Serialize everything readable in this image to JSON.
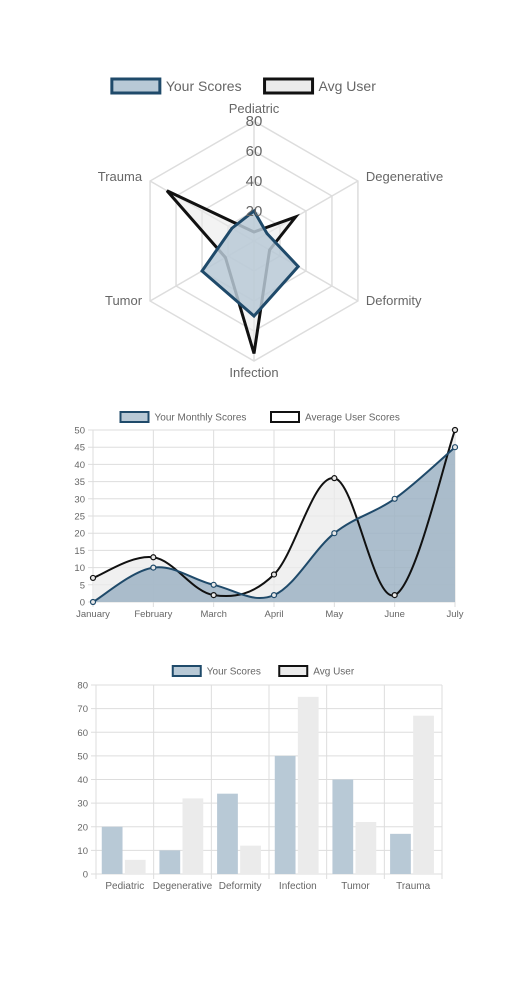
{
  "colors": {
    "you_fill": "#b8c9d6",
    "you_stroke": "#1f4a6a",
    "avg_fill": "#ebebeb",
    "avg_stroke": "#111111",
    "area_fill": "#9eb3c4",
    "grid": "#dddddd",
    "label": "#666666"
  },
  "chart_data": [
    {
      "type": "radar",
      "legend": [
        "Your Scores",
        "Avg User"
      ],
      "legend_position": "top",
      "categories": [
        "Pediatric",
        "Degenerative",
        "Deformity",
        "Infection",
        "Tumor",
        "Trauma"
      ],
      "ticks": [
        "20",
        "40",
        "60",
        "80"
      ],
      "range": [
        0,
        80
      ],
      "series": [
        {
          "name": "Your Scores",
          "values": [
            20,
            10,
            34,
            50,
            40,
            17
          ]
        },
        {
          "name": "Avg User",
          "values": [
            6,
            32,
            12,
            75,
            22,
            67
          ]
        }
      ]
    },
    {
      "type": "area",
      "legend": [
        "Your Monthly Scores",
        "Average User Scores"
      ],
      "legend_position": "top",
      "categories": [
        "January",
        "February",
        "March",
        "April",
        "May",
        "June",
        "July"
      ],
      "ticks": [
        "0",
        "5",
        "10",
        "15",
        "20",
        "25",
        "30",
        "35",
        "40",
        "45",
        "50"
      ],
      "ylim": [
        0,
        50
      ],
      "grid": true,
      "series": [
        {
          "name": "Your Monthly Scores",
          "values": [
            0,
            10,
            5,
            2,
            20,
            30,
            45
          ]
        },
        {
          "name": "Average User Scores",
          "values": [
            7,
            13,
            2,
            8,
            36,
            2,
            50
          ]
        }
      ]
    },
    {
      "type": "bar",
      "legend": [
        "Your Scores",
        "Avg User"
      ],
      "legend_position": "top",
      "categories": [
        "Pediatric",
        "Degenerative",
        "Deformity",
        "Infection",
        "Tumor",
        "Trauma"
      ],
      "ticks": [
        "0",
        "10",
        "20",
        "30",
        "40",
        "50",
        "60",
        "70",
        "80"
      ],
      "ylim": [
        0,
        80
      ],
      "grid": true,
      "series": [
        {
          "name": "Your Scores",
          "values": [
            20,
            10,
            34,
            50,
            40,
            17
          ]
        },
        {
          "name": "Avg User",
          "values": [
            6,
            32,
            12,
            75,
            22,
            67
          ]
        }
      ]
    }
  ]
}
